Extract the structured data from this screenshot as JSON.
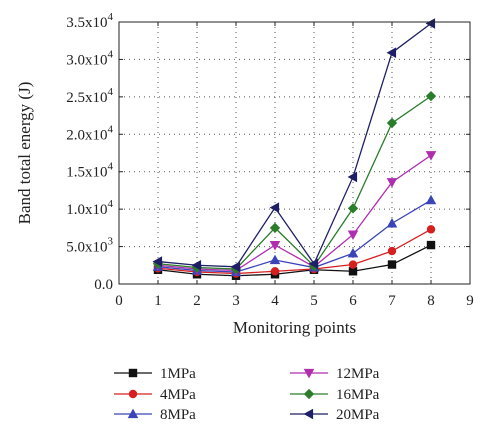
{
  "chart_data": {
    "type": "line",
    "xlabel": "Monitoring points",
    "ylabel": "Band total energy (J)",
    "xlim": [
      0,
      9
    ],
    "ylim": [
      0,
      35000
    ],
    "grid": true,
    "legend_position": "bottom",
    "x_ticks": [
      "0",
      "1",
      "2",
      "3",
      "4",
      "5",
      "6",
      "7",
      "8",
      "9"
    ],
    "y_ticks": [
      {
        "value": 0,
        "mantissa": "0.0",
        "exponent": ""
      },
      {
        "value": 5000,
        "mantissa": "5.0x10",
        "exponent": "3"
      },
      {
        "value": 10000,
        "mantissa": "1.0x10",
        "exponent": "4"
      },
      {
        "value": 15000,
        "mantissa": "1.5x10",
        "exponent": "4"
      },
      {
        "value": 20000,
        "mantissa": "2.0x10",
        "exponent": "4"
      },
      {
        "value": 25000,
        "mantissa": "2.5x10",
        "exponent": "4"
      },
      {
        "value": 30000,
        "mantissa": "3.0x10",
        "exponent": "4"
      },
      {
        "value": 35000,
        "mantissa": "3.5x10",
        "exponent": "4"
      }
    ],
    "x": [
      1,
      2,
      3,
      4,
      5,
      6,
      7,
      8
    ],
    "series": [
      {
        "name": "1MPa",
        "color": "#111111",
        "marker": "square",
        "values": [
          1900,
          1300,
          1100,
          1300,
          1900,
          1700,
          2600,
          5200
        ]
      },
      {
        "name": "4MPa",
        "color": "#d62020",
        "marker": "circle",
        "values": [
          2100,
          1600,
          1400,
          1700,
          2000,
          2600,
          4400,
          7300
        ]
      },
      {
        "name": "8MPa",
        "color": "#3a44b8",
        "marker": "triangle-up",
        "values": [
          2300,
          1800,
          1600,
          3200,
          2200,
          4100,
          8100,
          11200
        ]
      },
      {
        "name": "12MPa",
        "color": "#b02db0",
        "marker": "triangle-down",
        "values": [
          2500,
          2000,
          1800,
          5200,
          2300,
          6600,
          13600,
          17200
        ]
      },
      {
        "name": "16MPa",
        "color": "#2a7d2a",
        "marker": "diamond",
        "values": [
          2700,
          2200,
          2000,
          7500,
          2400,
          10100,
          21500,
          25100
        ]
      },
      {
        "name": "20MPa",
        "color": "#1f1f66",
        "marker": "triangle-left",
        "values": [
          3000,
          2500,
          2300,
          10200,
          2700,
          14300,
          30900,
          34800
        ]
      }
    ]
  }
}
